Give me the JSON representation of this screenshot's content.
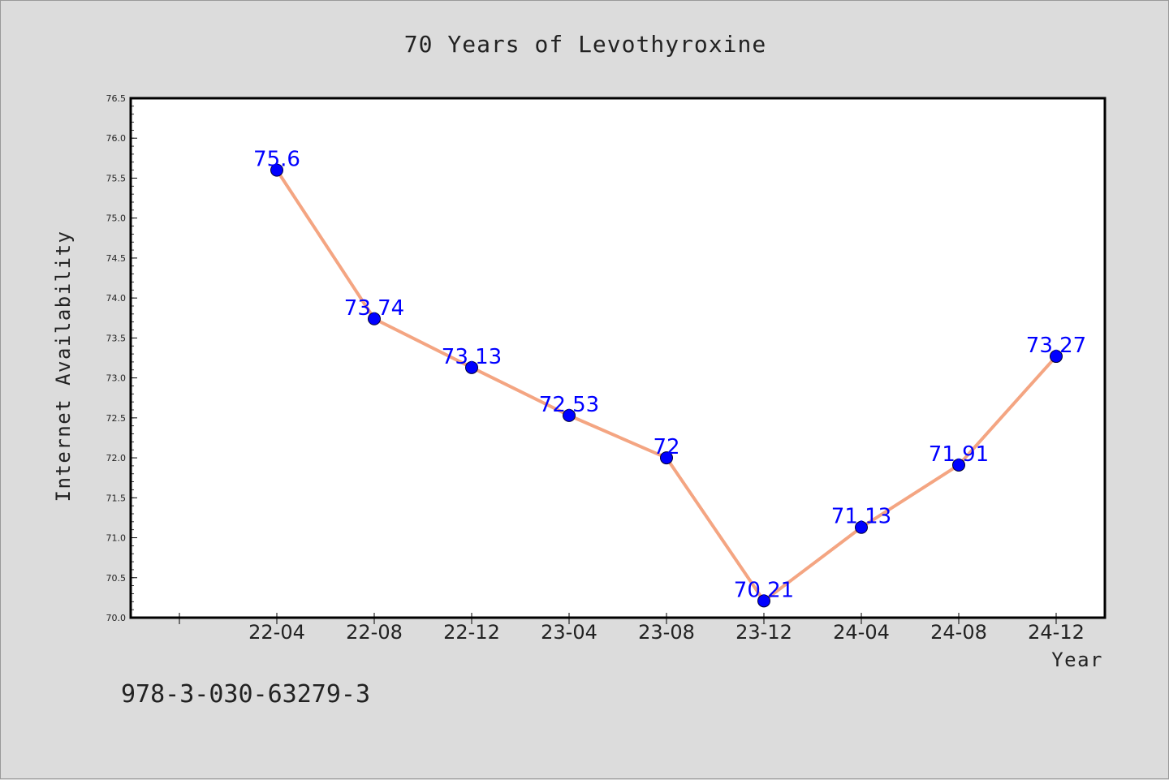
{
  "chart_data": {
    "type": "line",
    "title": "70 Years of Levothyroxine",
    "xlabel": "Year",
    "ylabel": "Internet Availability",
    "categories": [
      "22-04",
      "22-08",
      "22-12",
      "23-04",
      "23-08",
      "23-12",
      "24-04",
      "24-08",
      "24-12"
    ],
    "series": [
      {
        "values": [
          75.6,
          73.74,
          73.13,
          72.53,
          72.0,
          70.21,
          71.13,
          71.91,
          73.27
        ],
        "labels": [
          "75.6",
          "73.74",
          "73.13",
          "72.53",
          "72",
          "70.21",
          "71.13",
          "71.91",
          "73.27"
        ],
        "line_color": "#f4a582",
        "marker_color": "#0000ff"
      }
    ],
    "ylim": [
      70.0,
      76.5
    ],
    "yticks": [
      "70.0",
      "70.5",
      "71.0",
      "71.5",
      "72.0",
      "72.5",
      "73.0",
      "73.5",
      "74.0",
      "74.5",
      "75.0",
      "75.5",
      "76.0",
      "76.5"
    ],
    "grid": false,
    "legend": "none"
  },
  "footer": {
    "isbn": "978-3-030-63279-3"
  },
  "colors": {
    "background": "#dcdcdc",
    "plot_background": "#ffffff",
    "label_color": "#0000ff"
  }
}
